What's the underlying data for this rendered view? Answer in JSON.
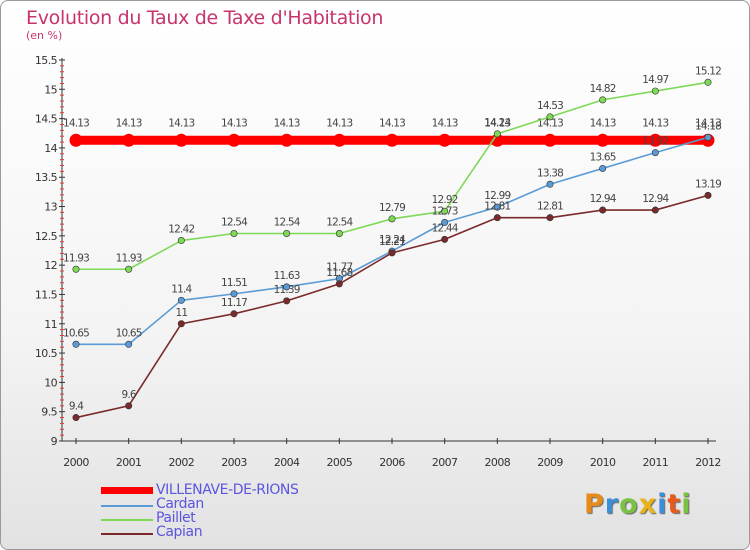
{
  "title": "Evolution du Taux de Taxe d'Habitation",
  "subtitle": "(en %)",
  "logo": {
    "text": "Proxiti",
    "colors": [
      "#e88a1a",
      "#3a8fd8",
      "#7cc242",
      "#e8b41a",
      "#3a8fd8",
      "#e85a1a",
      "#7cc242"
    ]
  },
  "chart_data": {
    "type": "line",
    "title": "Evolution du Taux de Taxe d'Habitation",
    "ylabel": "(en %)",
    "xlabel": "",
    "x": [
      "2000",
      "2001",
      "2002",
      "2003",
      "2004",
      "2005",
      "2006",
      "2007",
      "2008",
      "2009",
      "2010",
      "2011",
      "2012"
    ],
    "ylim": [
      9,
      15.5
    ],
    "yticks": [
      "9",
      "9.5",
      "10",
      "10.5",
      "11",
      "11.5",
      "12",
      "12.5",
      "13",
      "13.5",
      "14",
      "14.5",
      "15",
      "15.5"
    ],
    "grid": false,
    "legend_position": "bottom-left",
    "series": [
      {
        "name": "VILLENAVE-DE-RIONS",
        "color": "#ff0000",
        "values": [
          14.13,
          14.13,
          14.13,
          14.13,
          14.13,
          14.13,
          14.13,
          14.13,
          14.13,
          14.13,
          14.13,
          14.13,
          14.13
        ]
      },
      {
        "name": "Cardan",
        "color": "#5b9bd5",
        "values": [
          10.65,
          10.65,
          11.4,
          11.51,
          11.63,
          11.77,
          12.24,
          12.73,
          12.99,
          13.38,
          13.65,
          13.92,
          14.18
        ]
      },
      {
        "name": "Paillet",
        "color": "#7ed957",
        "values": [
          11.93,
          11.93,
          12.42,
          12.54,
          12.54,
          12.54,
          12.79,
          12.92,
          14.24,
          14.53,
          14.82,
          14.97,
          15.12
        ]
      },
      {
        "name": "Capian",
        "color": "#7a2a2a",
        "values": [
          9.4,
          9.6,
          11,
          11.17,
          11.39,
          11.68,
          12.21,
          12.44,
          12.81,
          12.81,
          12.94,
          12.94,
          13.19
        ]
      }
    ]
  }
}
